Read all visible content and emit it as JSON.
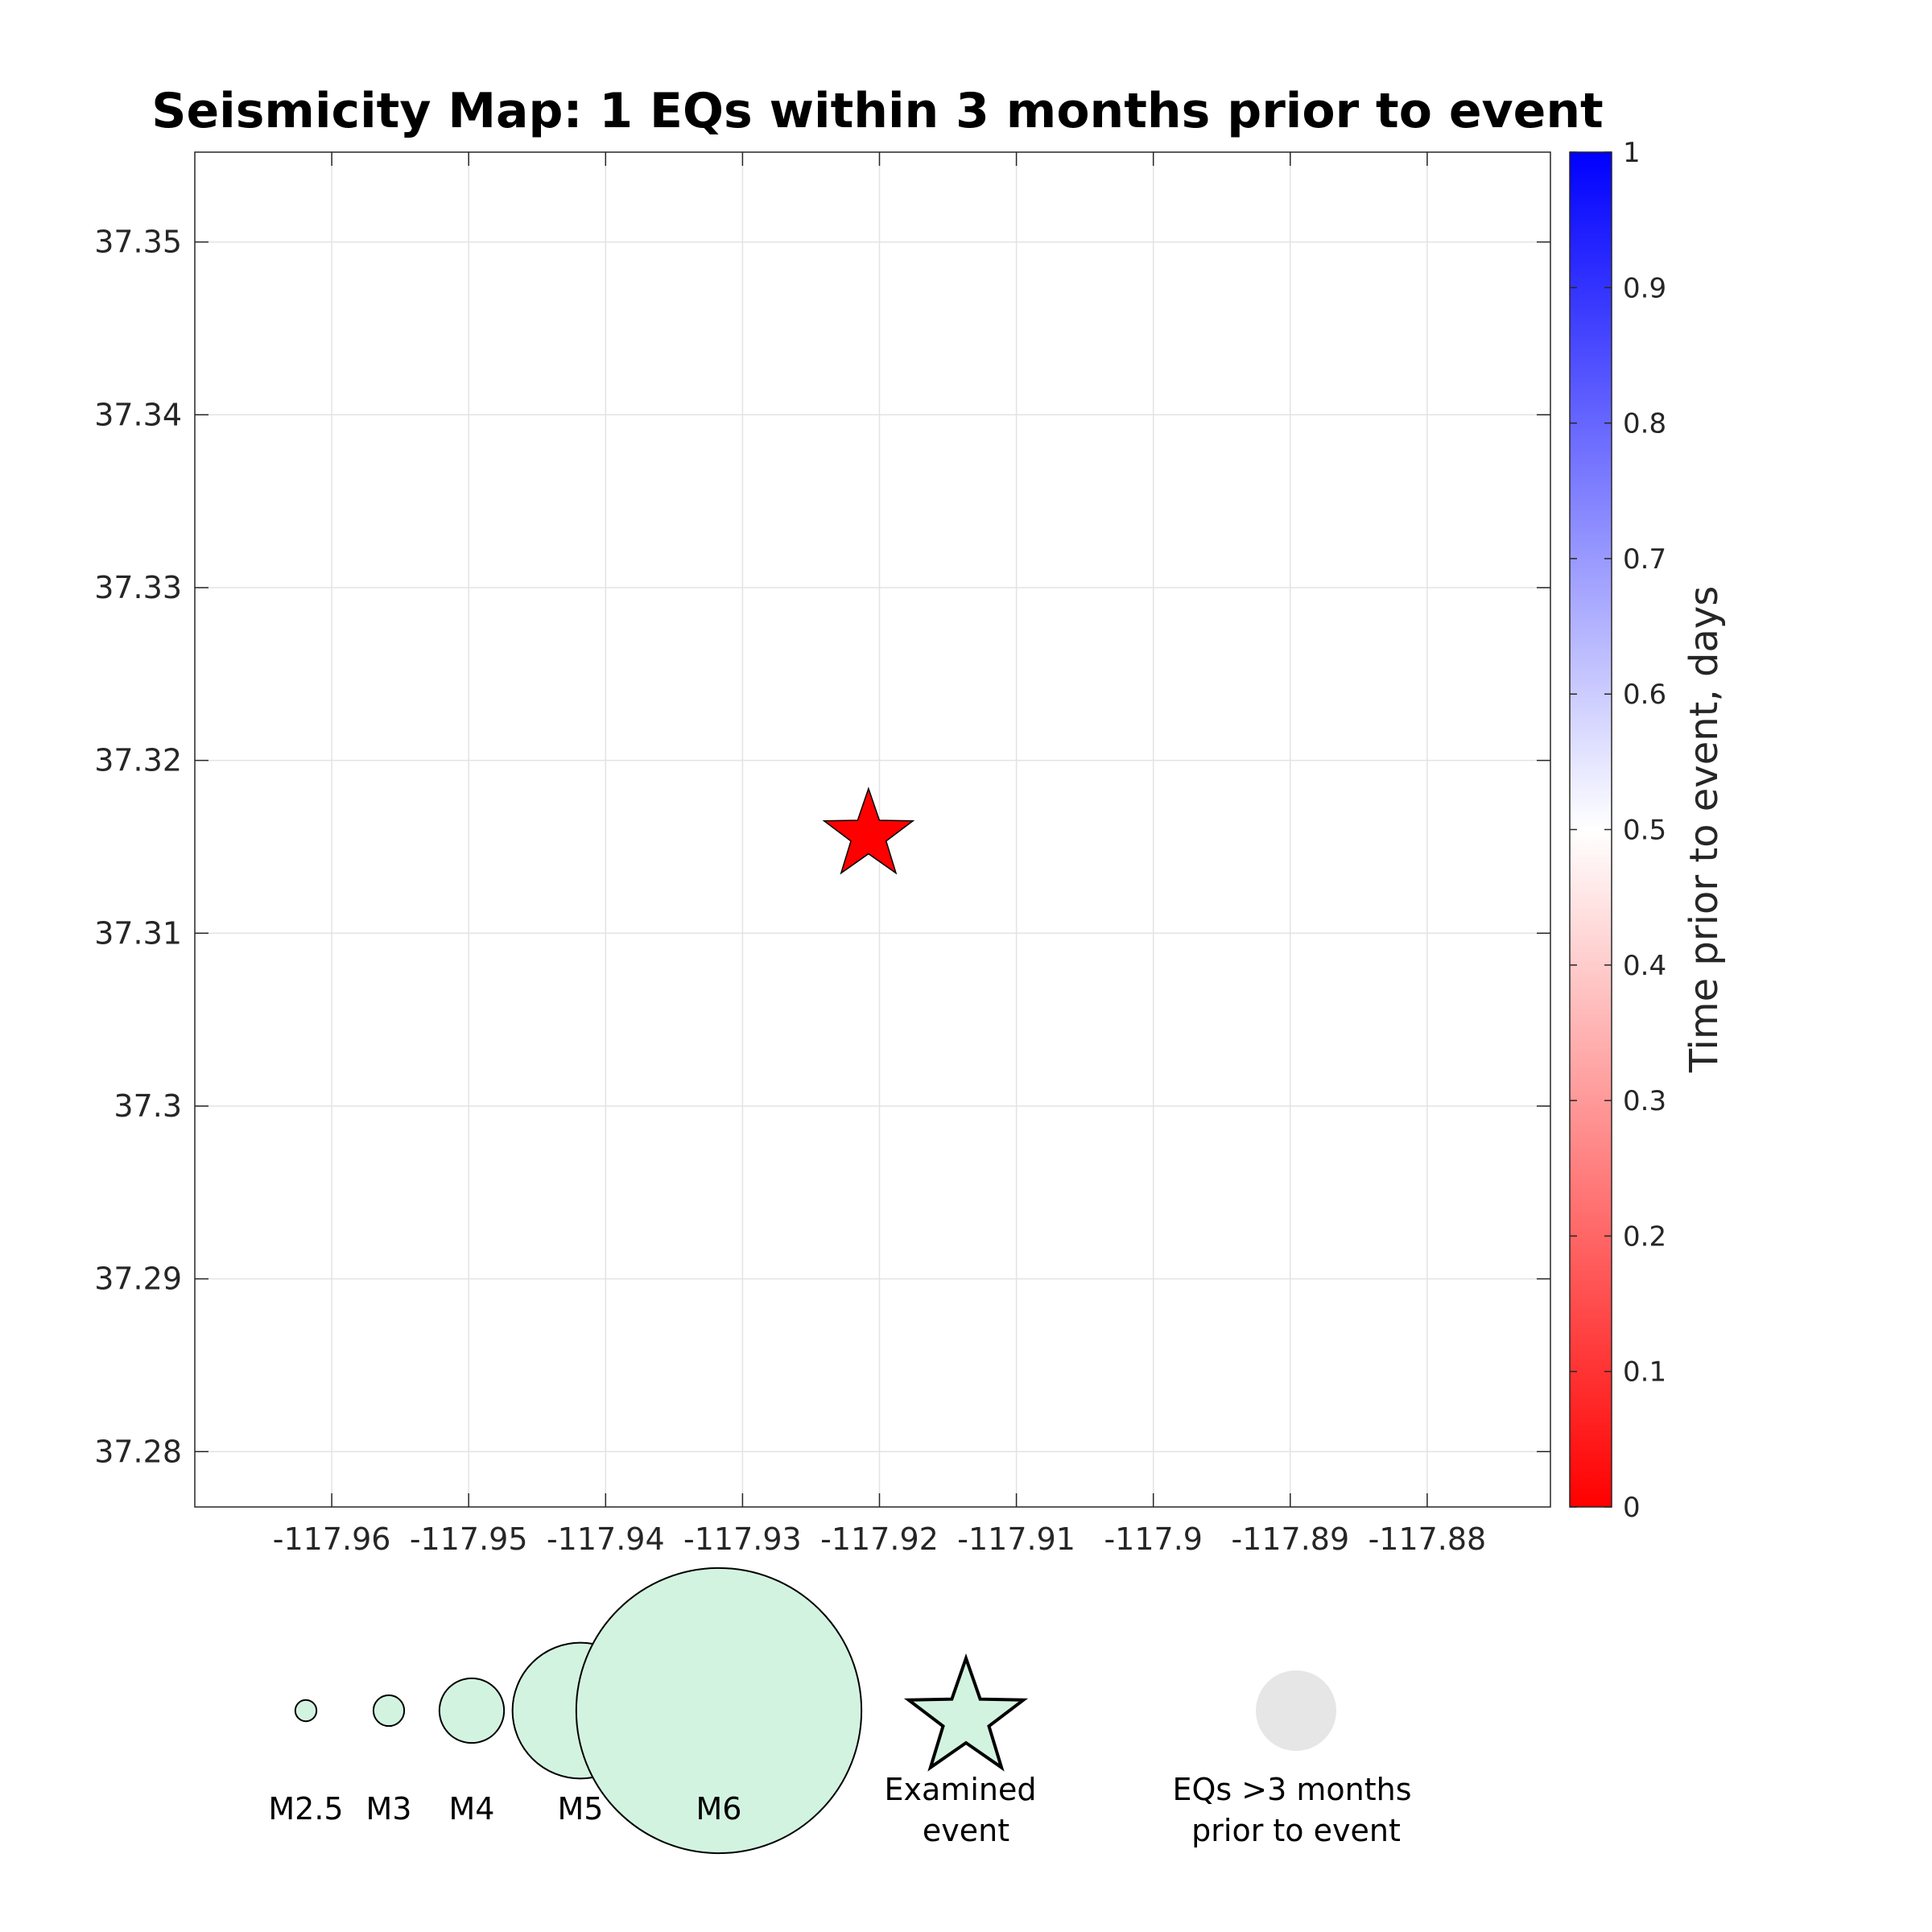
{
  "chart_data": {
    "type": "scatter",
    "title": "Seismicity Map: 1 EQs within 3 months prior to event",
    "xlabel": "",
    "ylabel": "",
    "xlim": [
      -117.97,
      -117.871
    ],
    "ylim": [
      37.2768,
      37.3552
    ],
    "x_ticks": [
      -117.96,
      -117.95,
      -117.94,
      -117.93,
      -117.92,
      -117.91,
      -117.9,
      -117.89,
      -117.88
    ],
    "x_tick_labels": [
      "-117.96",
      "-117.95",
      "-117.94",
      "-117.93",
      "-117.92",
      "-117.91",
      "-117.9",
      "-117.89",
      "-117.88"
    ],
    "y_ticks": [
      37.28,
      37.29,
      37.3,
      37.31,
      37.32,
      37.33,
      37.34,
      37.35
    ],
    "y_tick_labels": [
      "37.28",
      "37.29",
      "37.3",
      "37.31",
      "37.32",
      "37.33",
      "37.34",
      "37.35"
    ],
    "grid": true,
    "examined_event": {
      "lon": -117.9208,
      "lat": 37.3159,
      "color": "#ff0000",
      "marker": "star"
    },
    "earthquakes": [],
    "colorbar": {
      "label": "Time prior to event, days",
      "range": [
        0,
        1
      ],
      "ticks": [
        0,
        0.1,
        0.2,
        0.3,
        0.4,
        0.5,
        0.6,
        0.7,
        0.8,
        0.9,
        1
      ],
      "tick_labels": [
        "0",
        "0.1",
        "0.2",
        "0.3",
        "0.4",
        "0.5",
        "0.6",
        "0.7",
        "0.8",
        "0.9",
        "1"
      ],
      "colors": [
        "#ff0000",
        "#ffffff",
        "#0000ff"
      ],
      "placement": "right"
    },
    "legend": {
      "placement": "bottom",
      "magnitudes": [
        {
          "label": "M2.5",
          "magnitude": 2.5
        },
        {
          "label": "M3",
          "magnitude": 3
        },
        {
          "label": "M4",
          "magnitude": 4
        },
        {
          "label": "M5",
          "magnitude": 5
        },
        {
          "label": "M6",
          "magnitude": 6
        }
      ],
      "magnitude_fill": "#d3f3e1",
      "examined_label_line1": "Examined",
      "examined_label_line2": "event",
      "old_label_line1": "EQs >3 months",
      "old_label_line2": "prior to event",
      "old_fill": "#e6e6e6"
    }
  }
}
